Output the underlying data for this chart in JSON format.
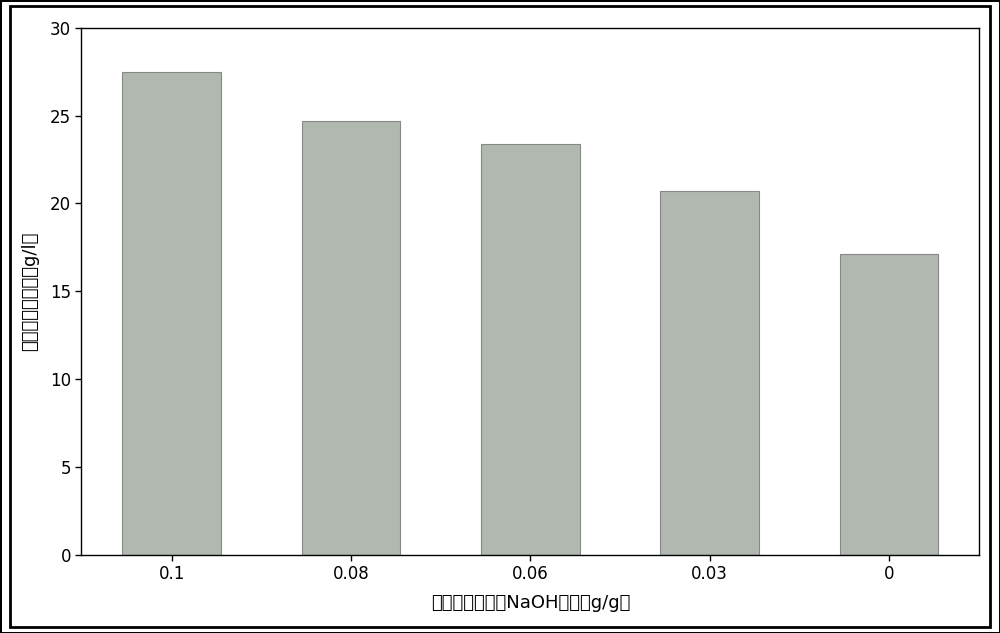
{
  "categories": [
    "0.1",
    "0.08",
    "0.06",
    "0.03",
    "0"
  ],
  "values": [
    27.5,
    24.7,
    23.4,
    20.7,
    17.1
  ],
  "bar_color": "#b0b8b0",
  "bar_edgecolor": "#888888",
  "xlabel": "碱预浸提步骤中NaOH加量（g/g）",
  "ylabel": "葡萄糖释放浓度（g/l）",
  "ylim": [
    0,
    30
  ],
  "yticks": [
    0,
    5,
    10,
    15,
    20,
    25,
    30
  ],
  "title": "",
  "background_color": "#ffffff",
  "plot_bg_color": "#ffffff",
  "xlabel_fontsize": 13,
  "ylabel_fontsize": 13,
  "tick_fontsize": 12,
  "bar_width": 0.55
}
